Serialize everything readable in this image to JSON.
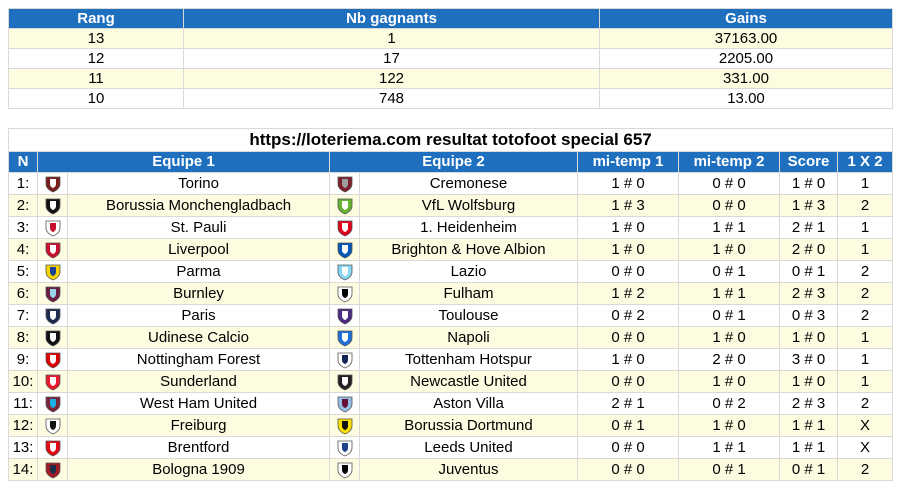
{
  "gains_table": {
    "headers": [
      "Rang",
      "Nb gagnants",
      "Gains"
    ],
    "rows": [
      {
        "rang": "13",
        "gagnants": "1",
        "gains": "37163.00"
      },
      {
        "rang": "12",
        "gagnants": "17",
        "gains": "2205.00"
      },
      {
        "rang": "11",
        "gagnants": "122",
        "gains": "331.00"
      },
      {
        "rang": "10",
        "gagnants": "748",
        "gains": "13.00"
      }
    ]
  },
  "match_table": {
    "title": "https://loteriema.com resultat totofoot special 657",
    "headers": {
      "n": "N",
      "equipe1": "Equipe 1",
      "equipe2": "Equipe 2",
      "mitemp1": "mi-temp 1",
      "mitemp2": "mi-temp 2",
      "score": "Score",
      "result": "1 X 2"
    },
    "rows": [
      {
        "n": "1:",
        "team1": "Torino",
        "team2": "Cremonese",
        "mt1": "1 # 0",
        "mt2": "0 # 0",
        "score": "1 # 0",
        "result": "1",
        "crest1": "torino-crest",
        "crest2": "cremonese-crest",
        "c1": [
          "#7a1e1e",
          "#ffffff"
        ],
        "c2": [
          "#7d1f2a",
          "#9e9e9e"
        ]
      },
      {
        "n": "2:",
        "team1": "Borussia Monchengladbach",
        "team2": "VfL Wolfsburg",
        "mt1": "1 # 3",
        "mt2": "0 # 0",
        "score": "1 # 3",
        "result": "2",
        "crest1": "gladbach-crest",
        "crest2": "wolfsburg-crest",
        "c1": [
          "#111111",
          "#ffffff"
        ],
        "c2": [
          "#65b32e",
          "#ffffff"
        ]
      },
      {
        "n": "3:",
        "team1": "St. Pauli",
        "team2": "1. Heidenheim",
        "mt1": "1 # 0",
        "mt2": "1 # 1",
        "score": "2 # 1",
        "result": "1",
        "crest1": "st-pauli-crest",
        "crest2": "heidenheim-crest",
        "c1": [
          "#ffffff",
          "#c8102e"
        ],
        "c2": [
          "#e2001a",
          "#ffffff"
        ]
      },
      {
        "n": "4:",
        "team1": "Liverpool",
        "team2": "Brighton & Hove Albion",
        "mt1": "1 # 0",
        "mt2": "1 # 0",
        "score": "2 # 0",
        "result": "1",
        "crest1": "liverpool-crest",
        "crest2": "brighton-crest",
        "c1": [
          "#c8102e",
          "#ffffff"
        ],
        "c2": [
          "#0057b8",
          "#ffffff"
        ]
      },
      {
        "n": "5:",
        "team1": "Parma",
        "team2": "Lazio",
        "mt1": "0 # 0",
        "mt2": "0 # 1",
        "score": "0 # 1",
        "result": "2",
        "crest1": "parma-crest",
        "crest2": "lazio-crest",
        "c1": [
          "#f5d300",
          "#1c3f94"
        ],
        "c2": [
          "#87d8f7",
          "#ffffff"
        ]
      },
      {
        "n": "6:",
        "team1": "Burnley",
        "team2": "Fulham",
        "mt1": "1 # 2",
        "mt2": "1 # 1",
        "score": "2 # 3",
        "result": "2",
        "crest1": "burnley-crest",
        "crest2": "fulham-crest",
        "c1": [
          "#6c1d45",
          "#99d6ea"
        ],
        "c2": [
          "#ffffff",
          "#000000"
        ]
      },
      {
        "n": "7:",
        "team1": "Paris",
        "team2": "Toulouse",
        "mt1": "0 # 2",
        "mt2": "0 # 1",
        "score": "0 # 3",
        "result": "2",
        "crest1": "paris-crest",
        "crest2": "toulouse-crest",
        "c1": [
          "#1d2b53",
          "#ffffff"
        ],
        "c2": [
          "#4a2a83",
          "#ffffff"
        ]
      },
      {
        "n": "8:",
        "team1": "Udinese Calcio",
        "team2": "Napoli",
        "mt1": "0 # 0",
        "mt2": "1 # 0",
        "score": "1 # 0",
        "result": "1",
        "crest1": "udinese-crest",
        "crest2": "napoli-crest",
        "c1": [
          "#111111",
          "#ffffff"
        ],
        "c2": [
          "#1e6fd9",
          "#ffffff"
        ]
      },
      {
        "n": "9:",
        "team1": "Nottingham Forest",
        "team2": "Tottenham Hotspur",
        "mt1": "1 # 0",
        "mt2": "2 # 0",
        "score": "3 # 0",
        "result": "1",
        "crest1": "forest-crest",
        "crest2": "tottenham-crest",
        "c1": [
          "#dd0000",
          "#ffffff"
        ],
        "c2": [
          "#ffffff",
          "#132257"
        ]
      },
      {
        "n": "10:",
        "team1": "Sunderland",
        "team2": "Newcastle United",
        "mt1": "0 # 0",
        "mt2": "1 # 0",
        "score": "1 # 0",
        "result": "1",
        "crest1": "sunderland-crest",
        "crest2": "newcastle-crest",
        "c1": [
          "#eb172b",
          "#ffffff"
        ],
        "c2": [
          "#241f20",
          "#ffffff"
        ]
      },
      {
        "n": "11:",
        "team1": "West Ham United",
        "team2": "Aston Villa",
        "mt1": "2 # 1",
        "mt2": "0 # 2",
        "score": "2 # 3",
        "result": "2",
        "crest1": "west-ham-crest",
        "crest2": "aston-villa-crest",
        "c1": [
          "#7a263a",
          "#1bb1e7"
        ],
        "c2": [
          "#95bfe5",
          "#670e36"
        ]
      },
      {
        "n": "12:",
        "team1": "Freiburg",
        "team2": "Borussia Dortmund",
        "mt1": "0 # 1",
        "mt2": "1 # 0",
        "score": "1 # 1",
        "result": "X",
        "crest1": "freiburg-crest",
        "crest2": "dortmund-crest",
        "c1": [
          "#ffffff",
          "#111111"
        ],
        "c2": [
          "#fde100",
          "#111111"
        ]
      },
      {
        "n": "13:",
        "team1": "Brentford",
        "team2": "Leeds United",
        "mt1": "0 # 0",
        "mt2": "1 # 1",
        "score": "1 # 1",
        "result": "X",
        "crest1": "brentford-crest",
        "crest2": "leeds-crest",
        "c1": [
          "#e30613",
          "#ffffff"
        ],
        "c2": [
          "#ffffff",
          "#1d428a"
        ]
      },
      {
        "n": "14:",
        "team1": "Bologna 1909",
        "team2": "Juventus",
        "mt1": "0 # 0",
        "mt2": "0 # 1",
        "score": "0 # 1",
        "result": "2",
        "crest1": "bologna-crest",
        "crest2": "juventus-crest",
        "c1": [
          "#a21c26",
          "#1a2f48"
        ],
        "c2": [
          "#ffffff",
          "#000000"
        ]
      }
    ]
  },
  "colors": {
    "header_bg": "#1f6fbf",
    "header_text": "#ffffff",
    "stripe": "#fdfbe0",
    "border": "#d9d9d9"
  }
}
